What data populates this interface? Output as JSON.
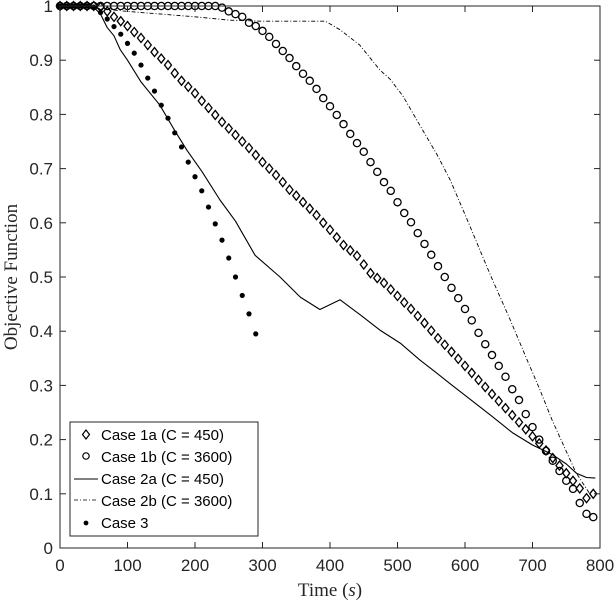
{
  "chart_data": {
    "type": "line",
    "title": "",
    "xlabel": "Time (s)",
    "xlabel_parts": {
      "text": "Time ",
      "var": "s"
    },
    "ylabel": "Objective Function",
    "xlim": [
      0,
      800
    ],
    "ylim": [
      0,
      1
    ],
    "xticks": [
      0,
      100,
      200,
      300,
      400,
      500,
      600,
      700,
      800
    ],
    "yticks": [
      0,
      0.1,
      0.2,
      0.3,
      0.4,
      0.5,
      0.6,
      0.7,
      0.8,
      0.9,
      1
    ],
    "ytick_labels": [
      "0",
      "0.1",
      "0.2",
      "0.3",
      "0.4",
      "0.5",
      "0.6",
      "0.7",
      "0.8",
      "0.9",
      "1"
    ],
    "grid": false,
    "legend_position": "lower left",
    "series": [
      {
        "name": "Case 1a (C = 450)",
        "style": "diamond-markers",
        "color": "#000000",
        "x": [
          0,
          10,
          20,
          30,
          40,
          50,
          60,
          70,
          80,
          90,
          100,
          110,
          120,
          130,
          140,
          150,
          160,
          170,
          180,
          190,
          200,
          210,
          220,
          230,
          240,
          250,
          260,
          270,
          280,
          290,
          300,
          310,
          320,
          330,
          340,
          350,
          360,
          370,
          380,
          390,
          400,
          410,
          420,
          430,
          440,
          450,
          460,
          470,
          480,
          490,
          500,
          510,
          520,
          530,
          540,
          550,
          560,
          570,
          580,
          590,
          600,
          610,
          620,
          630,
          640,
          650,
          660,
          670,
          680,
          690,
          700,
          710,
          720,
          730,
          740,
          750,
          760,
          770,
          780,
          790
        ],
        "y": [
          1,
          1,
          1,
          1,
          1,
          1,
          0.998,
          0.99,
          0.98,
          0.972,
          0.963,
          0.952,
          0.941,
          0.928,
          0.915,
          0.903,
          0.891,
          0.876,
          0.862,
          0.851,
          0.839,
          0.825,
          0.812,
          0.799,
          0.786,
          0.774,
          0.762,
          0.75,
          0.738,
          0.725,
          0.712,
          0.7,
          0.688,
          0.675,
          0.661,
          0.65,
          0.638,
          0.626,
          0.614,
          0.6,
          0.587,
          0.573,
          0.559,
          0.549,
          0.539,
          0.523,
          0.507,
          0.498,
          0.489,
          0.477,
          0.465,
          0.453,
          0.441,
          0.428,
          0.415,
          0.401,
          0.387,
          0.375,
          0.362,
          0.349,
          0.336,
          0.323,
          0.31,
          0.297,
          0.284,
          0.271,
          0.258,
          0.245,
          0.232,
          0.219,
          0.206,
          0.193,
          0.18,
          0.166,
          0.152,
          0.138,
          0.124,
          0.11,
          0.092,
          0.1
        ]
      },
      {
        "name": "Case 1b (C = 3600)",
        "style": "circle-markers",
        "color": "#000000",
        "x": [
          0,
          10,
          20,
          30,
          40,
          50,
          60,
          70,
          80,
          90,
          100,
          110,
          120,
          130,
          140,
          150,
          160,
          170,
          180,
          190,
          200,
          210,
          220,
          230,
          240,
          250,
          260,
          270,
          280,
          290,
          300,
          310,
          320,
          330,
          340,
          350,
          360,
          370,
          380,
          390,
          400,
          410,
          420,
          430,
          440,
          450,
          460,
          470,
          480,
          490,
          500,
          510,
          520,
          530,
          540,
          550,
          560,
          570,
          580,
          590,
          600,
          610,
          620,
          630,
          640,
          650,
          660,
          670,
          680,
          690,
          700,
          710,
          720,
          730,
          740,
          750,
          760,
          770,
          780,
          790
        ],
        "y": [
          1,
          1,
          1,
          1,
          1,
          1,
          1,
          1,
          1,
          1,
          1,
          1,
          1,
          1,
          1,
          1,
          1,
          1,
          1,
          1,
          1,
          1,
          1,
          1,
          0.997,
          0.99,
          0.985,
          0.98,
          0.969,
          0.963,
          0.954,
          0.943,
          0.93,
          0.917,
          0.904,
          0.889,
          0.875,
          0.862,
          0.847,
          0.83,
          0.815,
          0.799,
          0.782,
          0.764,
          0.747,
          0.731,
          0.712,
          0.694,
          0.675,
          0.659,
          0.638,
          0.618,
          0.601,
          0.581,
          0.561,
          0.541,
          0.52,
          0.5,
          0.48,
          0.461,
          0.441,
          0.42,
          0.397,
          0.376,
          0.356,
          0.336,
          0.316,
          0.293,
          0.273,
          0.247,
          0.223,
          0.2,
          0.179,
          0.161,
          0.142,
          0.124,
          0.109,
          0.083,
          0.063,
          0.057
        ]
      },
      {
        "name": "Case 2a (C = 450)",
        "style": "solid-line",
        "color": "#000000",
        "x": [
          0,
          30,
          50,
          60,
          70,
          80,
          89,
          100,
          120,
          148,
          170,
          188,
          210,
          237,
          260,
          289,
          326,
          356,
          385,
          415,
          445,
          474,
          504,
          533,
          556,
          578,
          607,
          640,
          670,
          700,
          730,
          750,
          765,
          780,
          793
        ],
        "y": [
          1,
          1,
          0.998,
          0.985,
          0.96,
          0.945,
          0.92,
          0.9,
          0.86,
          0.817,
          0.77,
          0.734,
          0.695,
          0.642,
          0.603,
          0.54,
          0.5,
          0.463,
          0.44,
          0.458,
          0.43,
          0.402,
          0.378,
          0.347,
          0.325,
          0.303,
          0.275,
          0.243,
          0.213,
          0.19,
          0.172,
          0.155,
          0.138,
          0.13,
          0.129
        ]
      },
      {
        "name": "Case 2b (C = 3600)",
        "style": "dash-dot-line",
        "color": "#000000",
        "x": [
          0,
          40,
          60,
          100,
          150,
          200,
          250,
          300,
          350,
          393,
          415,
          444,
          474,
          489,
          508,
          533,
          559,
          578,
          597,
          616,
          627,
          641,
          667,
          692,
          711,
          729,
          764,
          788
        ],
        "y": [
          1,
          1,
          0.995,
          0.99,
          0.985,
          0.98,
          0.974,
          0.972,
          0.972,
          0.972,
          0.956,
          0.928,
          0.882,
          0.865,
          0.834,
          0.78,
          0.725,
          0.679,
          0.624,
          0.568,
          0.535,
          0.494,
          0.421,
          0.347,
          0.292,
          0.236,
          0.14,
          0.094
        ]
      },
      {
        "name": "Case 3",
        "style": "dot-markers",
        "color": "#000000",
        "x": [
          0,
          10,
          20,
          30,
          40,
          50,
          60,
          70,
          80,
          90,
          100,
          110,
          120,
          130,
          140,
          150,
          160,
          170,
          180,
          190,
          200,
          210,
          220,
          230,
          240,
          250,
          260,
          270,
          280,
          290
        ],
        "y": [
          1,
          1,
          1,
          1,
          1,
          0.998,
          0.988,
          0.976,
          0.962,
          0.948,
          0.931,
          0.913,
          0.891,
          0.867,
          0.843,
          0.817,
          0.793,
          0.766,
          0.74,
          0.712,
          0.685,
          0.659,
          0.629,
          0.598,
          0.568,
          0.535,
          0.5,
          0.466,
          0.432,
          0.395
        ]
      }
    ]
  },
  "legend": {
    "items": [
      {
        "label": "Case 1a (C = 450)"
      },
      {
        "label": "Case 1b (C = 3600)"
      },
      {
        "label": "Case 2a (C = 450)"
      },
      {
        "label": "Case 2b (C = 3600)"
      },
      {
        "label": "Case 3"
      }
    ]
  }
}
